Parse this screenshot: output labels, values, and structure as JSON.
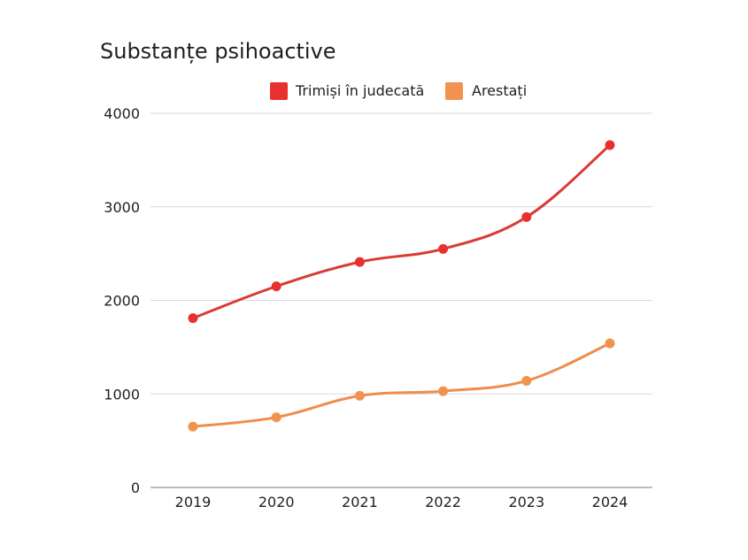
{
  "chart_data": {
    "type": "line",
    "title": "Substanțe psihoactive",
    "xlabel": "",
    "ylabel": "",
    "categories": [
      "2019",
      "2020",
      "2021",
      "2022",
      "2023",
      "2024"
    ],
    "ylim": [
      0,
      4000
    ],
    "yticks": [
      0,
      1000,
      2000,
      3000,
      4000
    ],
    "grid": true,
    "legend_position": "top-center",
    "series": [
      {
        "name": "Trimiși în judecată",
        "color": "#d93b35",
        "marker_color": "#e8312f",
        "values": [
          1810,
          2150,
          2410,
          2550,
          2890,
          3660
        ]
      },
      {
        "name": "Arestați",
        "color": "#ef8c4c",
        "marker_color": "#f2924f",
        "values": [
          650,
          750,
          980,
          1030,
          1140,
          1540
        ]
      }
    ]
  }
}
